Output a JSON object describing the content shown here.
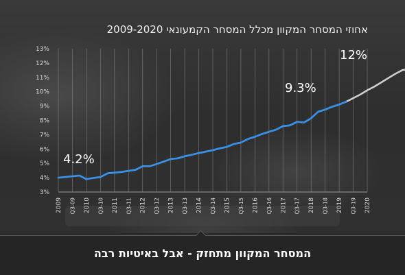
{
  "chart_data": {
    "type": "line",
    "title": "אחוזי המסחר המקוון מכלל המסחר הקמעונאי 2009-2020",
    "ylim": [
      3,
      13
    ],
    "y_ticks": [
      "3%",
      "4%",
      "5%",
      "6%",
      "7%",
      "8%",
      "9%",
      "10%",
      "11%",
      "12%",
      "13%"
    ],
    "x_ticks": [
      "2009",
      "Q3-09",
      "2010",
      "Q3-10",
      "2011",
      "Q3-11",
      "2012",
      "Q3-12",
      "2013",
      "Q3-13",
      "2014",
      "Q3-14",
      "2015",
      "Q3-15",
      "2016",
      "Q3-16",
      "2017",
      "Q3-17",
      "2018",
      "Q3-18",
      "2019",
      "Q3-19",
      "2020"
    ],
    "series": [
      {
        "color": "#3a8fe6",
        "values": [
          4.0,
          4.05,
          4.1,
          4.15,
          3.9,
          3.98,
          4.05,
          4.3,
          4.35,
          4.4,
          4.48,
          4.55,
          4.8,
          4.8,
          4.95,
          5.12,
          5.3,
          5.35,
          5.5,
          5.6,
          5.72,
          5.82,
          5.92,
          6.05,
          6.15,
          6.35,
          6.45,
          6.7,
          6.85,
          7.05,
          7.2,
          7.35,
          7.6,
          7.65,
          7.9,
          7.85,
          8.15,
          8.6,
          8.75,
          8.95,
          9.1,
          9.3
        ]
      },
      {
        "color": "#cfcfcf",
        "values": [
          9.3,
          9.55,
          9.8,
          10.1,
          10.35,
          10.65,
          10.95,
          11.25,
          11.5,
          11.6
        ]
      }
    ],
    "annotations": [
      "4.2%",
      "9.3%",
      "12%"
    ],
    "grid": true
  },
  "caption": "המסחר המקוון מתחזק - אבל באיטיות רבה",
  "colors": {
    "actual": "#3a8fe6",
    "forecast": "#cfcfcf",
    "background": "#2b2b2b"
  }
}
